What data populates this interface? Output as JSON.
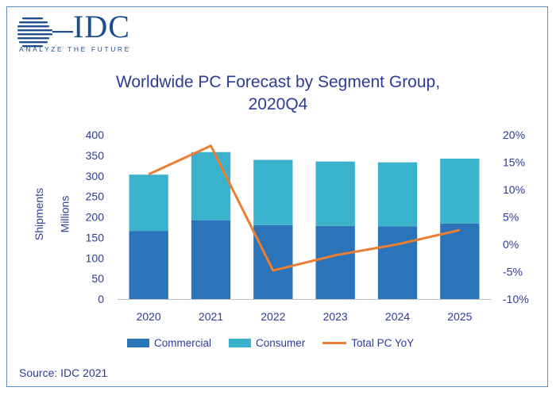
{
  "logo": {
    "name": "IDC",
    "tagline": "ANALYZE THE FUTURE"
  },
  "colors": {
    "commercial": "#2b74b9",
    "consumer": "#3bb2cc",
    "yoy": "#ed7d31",
    "text": "#2e3b97",
    "axis": "#2e3b97"
  },
  "chart_data": {
    "type": "bar",
    "title_line1": "Worldwide PC Forecast by Segment Group,",
    "title_line2": "2020Q4",
    "ylabel": "Shipments",
    "ylabel2": "Millions",
    "categories": [
      "2020",
      "2021",
      "2022",
      "2023",
      "2024",
      "2025"
    ],
    "series": [
      {
        "name": "Commercial",
        "kind": "bar",
        "values": [
          166,
          192,
          180,
          178,
          177,
          184
        ]
      },
      {
        "name": "Consumer",
        "kind": "bar",
        "values": [
          137,
          166,
          159,
          157,
          156,
          158
        ]
      },
      {
        "name": "Total PC YoY",
        "kind": "line",
        "axis": "right",
        "values": [
          12.8,
          18.0,
          -4.8,
          -2.0,
          0.0,
          2.6
        ]
      }
    ],
    "ylim": [
      0,
      400
    ],
    "yticks": [
      "0",
      "50",
      "100",
      "150",
      "200",
      "250",
      "300",
      "350",
      "400"
    ],
    "y2lim": [
      -10,
      20
    ],
    "y2ticks": [
      "-10%",
      "-5%",
      "0%",
      "5%",
      "10%",
      "15%",
      "20%"
    ],
    "legend_position": "bottom"
  },
  "source": "Source: IDC 2021"
}
